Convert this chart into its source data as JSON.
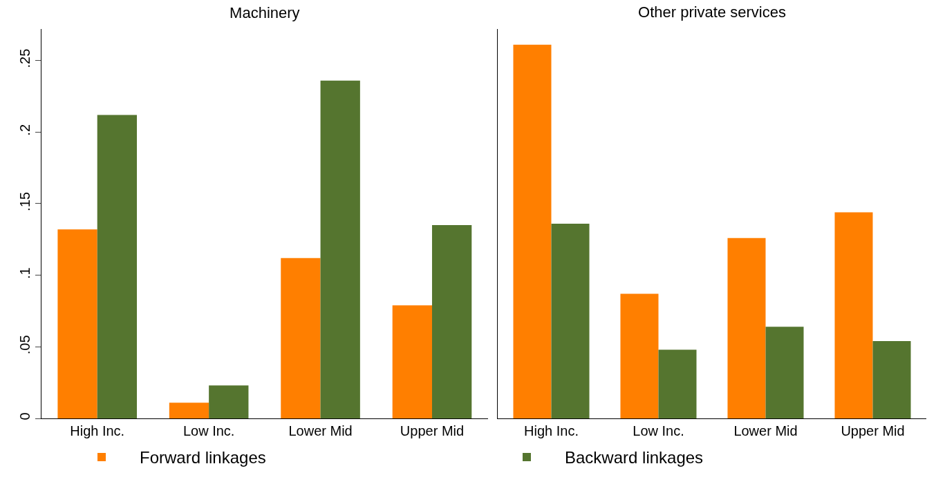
{
  "chart_data": [
    {
      "type": "bar",
      "title": "Machinery",
      "categories": [
        "High Inc.",
        "Low Inc.",
        "Lower Mid",
        "Upper Mid"
      ],
      "series": [
        {
          "name": "Forward linkages",
          "color": "#ff7f00",
          "values": [
            0.132,
            0.011,
            0.112,
            0.079
          ]
        },
        {
          "name": "Backward linkages",
          "color": "#55752f",
          "values": [
            0.212,
            0.023,
            0.236,
            0.135
          ]
        }
      ],
      "ylim": [
        0,
        0.272
      ],
      "yticks": [
        {
          "value": 0,
          "label": "0"
        },
        {
          "value": 0.05,
          "label": ".05"
        },
        {
          "value": 0.1,
          "label": ".1"
        },
        {
          "value": 0.15,
          "label": ".15"
        },
        {
          "value": 0.2,
          "label": ".2"
        },
        {
          "value": 0.25,
          "label": ".25"
        }
      ],
      "grid": false,
      "legend": "bottom"
    },
    {
      "type": "bar",
      "title": "Other private services",
      "categories": [
        "High Inc.",
        "Low Inc.",
        "Lower Mid",
        "Upper Mid"
      ],
      "series": [
        {
          "color": "#ff7f00",
          "values": [
            0.261,
            0.087,
            0.126,
            0.144
          ]
        },
        {
          "color": "#55752f",
          "values": [
            0.136,
            0.048,
            0.064,
            0.054
          ]
        }
      ],
      "ylim": [
        0,
        0.272
      ],
      "grid": false,
      "legend": false,
      "tick_labels": "x"
    }
  ]
}
